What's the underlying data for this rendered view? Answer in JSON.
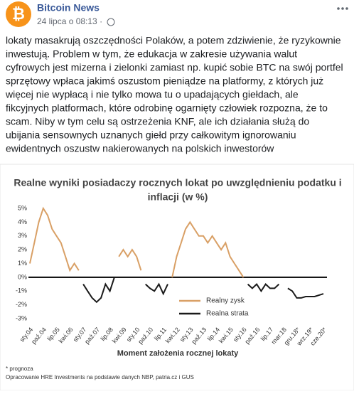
{
  "post": {
    "author": "Bitcoin News",
    "time": "24 lipca o 08:13 · ",
    "body_lines": [
      "lokaty masakrują oszczędności Polaków, a potem zdziwienie, że ryzykownie",
      "inwestują. Problem w tym, że edukacja w zakresie używania walut",
      "cyfrowych jest mizerna i zielonki zamiast np. kupić sobie BTC na swój portfel",
      "sprzętowy wpłaca jakimś oszustom pieniądze na platformy, z których już",
      "więcej nie wypłacą i nie tylko mowa tu o upadających giełdach, ale",
      "fikcyjnych platformach, które odrobinę ogarnięty człowiek rozpozna, że to",
      "scam. Niby w tym celu są ostrzeżenia KNF, ale ich działania służą do",
      "ubijania sensownych uznanych giełd przy całkowitym ignorowaniu",
      "ewidentnych oszustw nakierowanych na polskich inwestorów"
    ]
  },
  "chart_data": {
    "type": "line",
    "title_lines": [
      "Realne wyniki posiadaczy rocznych lokat po uwzględnieniu podatku i",
      "inflacji (w %)"
    ],
    "x_label": "Moment założenia rocznej lokaty",
    "notes": [
      "* prognoza",
      "Opracowanie HRE Investments na podstawie danych NBP, patria.cz i GUS"
    ],
    "categories": [
      "sty.04",
      null,
      null,
      "paź.04",
      null,
      null,
      "lip.05",
      null,
      null,
      "kwi.06",
      null,
      null,
      "sty.07",
      null,
      null,
      "paź.07",
      null,
      null,
      "lip.08",
      null,
      null,
      "kwi.09",
      null,
      null,
      "sty.10",
      null,
      null,
      "paź.10",
      null,
      null,
      "lip.11",
      null,
      null,
      "kwi.12",
      null,
      null,
      "sty.13",
      null,
      null,
      "paź.13",
      null,
      null,
      "lip.14",
      null,
      null,
      "kwi.15",
      null,
      null,
      "sty.16",
      null,
      null,
      "paź.16",
      null,
      null,
      "lip.17",
      null,
      null,
      "mar.18",
      null,
      null,
      "gru.18*",
      null,
      null,
      "wrz.19*",
      null,
      null,
      "cze.20*"
    ],
    "series": [
      {
        "name": "Realny zysk",
        "color": "#d9a066",
        "values": [
          1.0,
          2.5,
          4.0,
          5.0,
          4.5,
          3.5,
          3.0,
          2.5,
          1.5,
          0.5,
          1.0,
          0.5,
          null,
          null,
          null,
          null,
          null,
          null,
          null,
          null,
          1.5,
          2.0,
          1.5,
          2.0,
          1.5,
          0.5,
          null,
          null,
          null,
          null,
          null,
          null,
          0.0,
          1.5,
          2.5,
          3.5,
          4.0,
          3.5,
          3.0,
          3.0,
          2.5,
          3.0,
          2.5,
          2.0,
          2.5,
          1.5,
          1.0,
          0.5,
          0.0,
          null,
          null,
          null,
          null,
          null,
          null,
          null,
          null,
          0.0,
          null,
          null,
          null,
          null,
          null,
          null,
          null,
          null,
          null
        ]
      },
      {
        "name": "Realna strata",
        "color": "#1a1a1a",
        "values": [
          null,
          null,
          null,
          null,
          null,
          null,
          null,
          null,
          null,
          null,
          null,
          null,
          -0.5,
          -1.0,
          -1.5,
          -1.8,
          -1.5,
          -0.5,
          -1.0,
          0.0,
          null,
          null,
          null,
          null,
          null,
          null,
          -0.5,
          -0.8,
          -1.0,
          -0.5,
          -1.2,
          -0.5,
          null,
          null,
          null,
          null,
          null,
          null,
          null,
          null,
          null,
          null,
          null,
          null,
          null,
          null,
          null,
          null,
          null,
          -0.5,
          -0.8,
          -0.5,
          -1.0,
          -0.5,
          -0.8,
          -0.8,
          -0.5,
          null,
          -0.8,
          -1.0,
          -1.5,
          -1.5,
          -1.4,
          -1.4,
          -1.4,
          -1.3,
          -1.2
        ]
      }
    ],
    "ylim": [
      -3,
      5
    ],
    "yticks": [
      {
        "value": 5,
        "label": "5%"
      },
      {
        "value": 4,
        "label": "4%"
      },
      {
        "value": 3,
        "label": "3%"
      },
      {
        "value": 2,
        "label": "2%"
      },
      {
        "value": 1,
        "label": "1%"
      },
      {
        "value": 0,
        "label": "0%"
      },
      {
        "value": -1,
        "label": "-1%"
      },
      {
        "value": -2,
        "label": "-2%"
      },
      {
        "value": -3,
        "label": "-3%"
      }
    ]
  }
}
